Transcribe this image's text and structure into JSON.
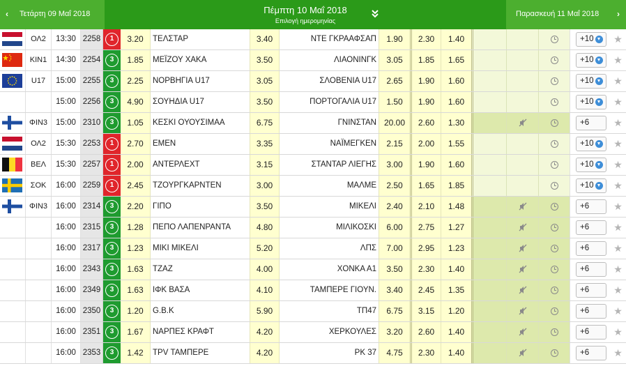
{
  "header": {
    "prev_day": "Τετάρτη 09 Μαΐ 2018",
    "current_day": "Πέμπτη 10 Μαΐ 2018",
    "date_picker_label": "Επιλογή ημερομηνίας",
    "next_day": "Παρασκευή 11 Μαΐ 2018",
    "prev_arrow": "‹",
    "next_arrow": "›"
  },
  "colors": {
    "header_green": "#2b9a19",
    "header_side_green": "#4caf2f",
    "level_1_red": "#e0252b",
    "level_3_green": "#1e9b2f",
    "odds_yellow": "#ffffcf",
    "highlight_green": "#dde9ac"
  },
  "matches": [
    {
      "flag": "netherlands",
      "league": "ΟΛ2",
      "time": "13:30",
      "code": "2258",
      "level": "1",
      "odd1": "3.20",
      "home": "ΤΕΛΣΤΑΡ",
      "oddx": "3.40",
      "away": "ΝΤΕ ΓΚΡΑΑΦΣΑΠ",
      "odd2": "1.90",
      "under": "2.30",
      "over": "1.40",
      "highlight": false,
      "mute": false,
      "more": "+10",
      "download": true
    },
    {
      "flag": "china",
      "league": "ΚΙΝ1",
      "time": "14:30",
      "code": "2254",
      "level": "3",
      "odd1": "1.85",
      "home": "ΜΕΪΖΟΥ ΧΑΚΑ",
      "oddx": "3.50",
      "away": "ΛΙΑΟΝΙΝΓΚ",
      "odd2": "3.05",
      "under": "1.85",
      "over": "1.65",
      "highlight": false,
      "mute": false,
      "more": "+10",
      "download": true
    },
    {
      "flag": "eu",
      "league": "U17",
      "time": "15:00",
      "code": "2255",
      "level": "3",
      "odd1": "2.25",
      "home": "ΝΟΡΒΗΓΙΑ U17",
      "oddx": "3.05",
      "away": "ΣΛΟΒΕΝΙΑ U17",
      "odd2": "2.65",
      "under": "1.90",
      "over": "1.60",
      "highlight": false,
      "mute": false,
      "more": "+10",
      "download": true
    },
    {
      "flag": "",
      "league": "",
      "time": "15:00",
      "code": "2256",
      "level": "3",
      "odd1": "4.90",
      "home": "ΣΟΥΗΔΙΑ U17",
      "oddx": "3.50",
      "away": "ΠΟΡΤΟΓΑΛΙΑ U17",
      "odd2": "1.50",
      "under": "1.90",
      "over": "1.60",
      "highlight": false,
      "mute": false,
      "more": "+10",
      "download": true
    },
    {
      "flag": "finland",
      "league": "ΦΙΝ3",
      "time": "15:00",
      "code": "2310",
      "level": "3",
      "odd1": "1.05",
      "home": "ΚΕΣΚΙ ΟΥΟΥΣΙΜΑΑ",
      "oddx": "6.75",
      "away": "ΓΝΙΝΣΤΑΝ",
      "odd2": "20.00",
      "under": "2.60",
      "over": "1.30",
      "highlight": true,
      "mute": true,
      "more": "+6",
      "download": false
    },
    {
      "flag": "netherlands",
      "league": "ΟΛ2",
      "time": "15:30",
      "code": "2253",
      "level": "1",
      "odd1": "2.70",
      "home": "ΕΜΕΝ",
      "oddx": "3.35",
      "away": "ΝΑΪΜΕΓΚΕΝ",
      "odd2": "2.15",
      "under": "2.00",
      "over": "1.55",
      "highlight": false,
      "mute": false,
      "more": "+10",
      "download": true
    },
    {
      "flag": "belgium",
      "league": "ΒΕΛ",
      "time": "15:30",
      "code": "2257",
      "level": "1",
      "odd1": "2.00",
      "home": "ΑΝΤΕΡΛΕΧΤ",
      "oddx": "3.15",
      "away": "ΣΤΑΝΤΑΡ ΛΙΕΓΗΣ",
      "odd2": "3.00",
      "under": "1.90",
      "over": "1.60",
      "highlight": false,
      "mute": false,
      "more": "+10",
      "download": true
    },
    {
      "flag": "sweden",
      "league": "ΣΟΚ",
      "time": "16:00",
      "code": "2259",
      "level": "1",
      "odd1": "2.45",
      "home": "ΤΖΟΥΡΓΚΑΡΝΤΕΝ",
      "oddx": "3.00",
      "away": "ΜΑΛΜΕ",
      "odd2": "2.50",
      "under": "1.65",
      "over": "1.85",
      "highlight": false,
      "mute": false,
      "more": "+10",
      "download": true
    },
    {
      "flag": "finland",
      "league": "ΦΙΝ3",
      "time": "16:00",
      "code": "2314",
      "level": "3",
      "odd1": "2.20",
      "home": "ΓΙΠΟ",
      "oddx": "3.50",
      "away": "ΜΙΚΕΛΙ",
      "odd2": "2.40",
      "under": "2.10",
      "over": "1.48",
      "highlight": true,
      "mute": true,
      "more": "+6",
      "download": false
    },
    {
      "flag": "",
      "league": "",
      "time": "16:00",
      "code": "2315",
      "level": "3",
      "odd1": "1.28",
      "home": "ΠΕΠΟ ΛΑΠΕΝΡΑΝΤΑ",
      "oddx": "4.80",
      "away": "ΜΙΛΙΚΟΣΚΙ",
      "odd2": "6.00",
      "under": "2.75",
      "over": "1.27",
      "highlight": true,
      "mute": true,
      "more": "+6",
      "download": false
    },
    {
      "flag": "",
      "league": "",
      "time": "16:00",
      "code": "2317",
      "level": "3",
      "odd1": "1.23",
      "home": "ΜΙΚΙ ΜΙΚΕΛΙ",
      "oddx": "5.20",
      "away": "ΛΠΣ",
      "odd2": "7.00",
      "under": "2.95",
      "over": "1.23",
      "highlight": true,
      "mute": true,
      "more": "+6",
      "download": false
    },
    {
      "flag": "",
      "league": "",
      "time": "16:00",
      "code": "2343",
      "level": "3",
      "odd1": "1.63",
      "home": "ΤΖΑΖ",
      "oddx": "4.00",
      "away": "ΧΟΝΚΑ Α1",
      "odd2": "3.50",
      "under": "2.30",
      "over": "1.40",
      "highlight": true,
      "mute": true,
      "more": "+6",
      "download": false
    },
    {
      "flag": "",
      "league": "",
      "time": "16:00",
      "code": "2349",
      "level": "3",
      "odd1": "1.63",
      "home": "ΙΦΚ ΒΑΣΑ",
      "oddx": "4.10",
      "away": "ΤΑΜΠΕΡΕ ΓΙΟΥΝ.",
      "odd2": "3.40",
      "under": "2.45",
      "over": "1.35",
      "highlight": true,
      "mute": true,
      "more": "+6",
      "download": false
    },
    {
      "flag": "",
      "league": "",
      "time": "16:00",
      "code": "2350",
      "level": "3",
      "odd1": "1.20",
      "home": "G.B.K",
      "oddx": "5.90",
      "away": "ΤΠ47",
      "odd2": "6.75",
      "under": "3.15",
      "over": "1.20",
      "highlight": true,
      "mute": true,
      "more": "+6",
      "download": false
    },
    {
      "flag": "",
      "league": "",
      "time": "16:00",
      "code": "2351",
      "level": "3",
      "odd1": "1.67",
      "home": "ΝΑΡΠΕΣ ΚΡΑΦΤ",
      "oddx": "4.20",
      "away": "ΧΕΡΚΟΥΛΕΣ",
      "odd2": "3.20",
      "under": "2.60",
      "over": "1.40",
      "highlight": true,
      "mute": true,
      "more": "+6",
      "download": false
    },
    {
      "flag": "",
      "league": "",
      "time": "16:00",
      "code": "2353",
      "level": "3",
      "odd1": "1.42",
      "home": "ΤΡV ΤΑΜΠΕΡΕ",
      "oddx": "4.20",
      "away": "ΡΚ 37",
      "odd2": "4.75",
      "under": "2.30",
      "over": "1.40",
      "highlight": true,
      "mute": true,
      "more": "+6",
      "download": false
    }
  ]
}
